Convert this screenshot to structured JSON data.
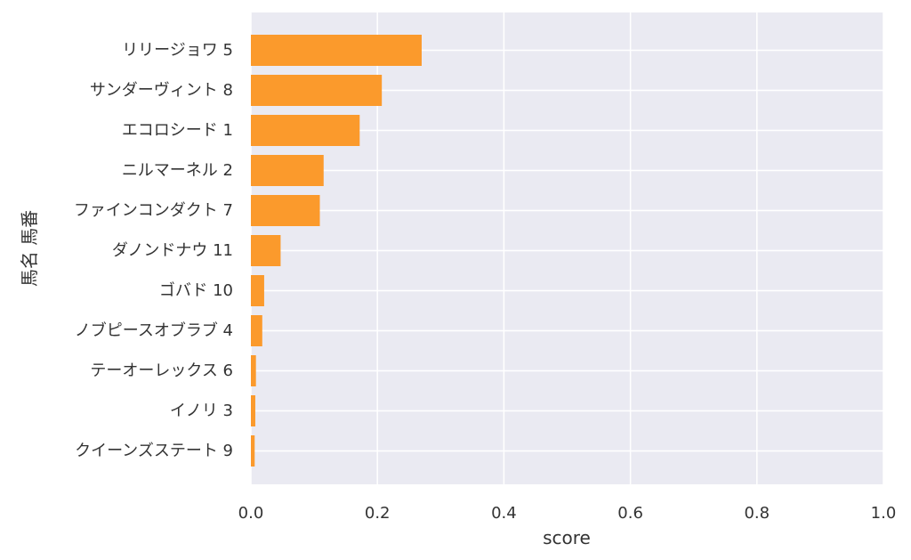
{
  "chart_data": {
    "type": "bar",
    "orientation": "horizontal",
    "title": "",
    "xlabel": "score",
    "ylabel": "馬名 馬番",
    "xlim": [
      0,
      1.0
    ],
    "x_ticks": [
      "0.0",
      "0.2",
      "0.4",
      "0.6",
      "0.8",
      "1.0"
    ],
    "x_tick_values": [
      0,
      0.2,
      0.4,
      0.6,
      0.8,
      1.0
    ],
    "grid": true,
    "categories": [
      "リリージョワ 5",
      "サンダーヴィント 8",
      "エコロシード 1",
      "ニルマーネル 2",
      "ファインコンダクト 7",
      "ダノンドナウ 11",
      "ゴバド 10",
      "ノブピースオブラブ 4",
      "テーオーレックス 6",
      "イノリ 3",
      "クイーンズステート 9"
    ],
    "values": [
      0.27,
      0.207,
      0.172,
      0.115,
      0.109,
      0.047,
      0.021,
      0.018,
      0.008,
      0.007,
      0.006
    ],
    "colors": {
      "bar": "#fb9a2c",
      "background": "#eaeaf2",
      "grid": "#ffffff",
      "text": "#333333"
    }
  }
}
